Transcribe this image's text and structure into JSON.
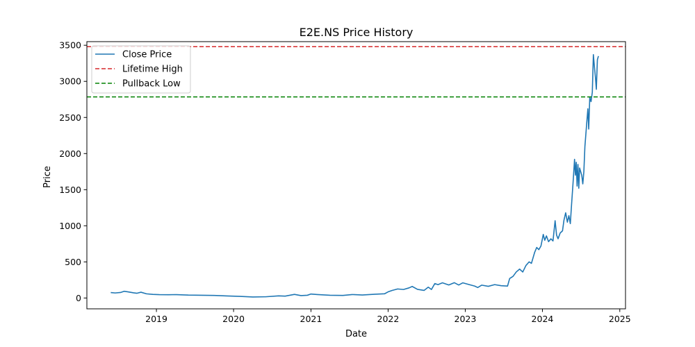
{
  "chart_data": {
    "type": "line",
    "title": "E2E.NS Price History",
    "xlabel": "Date",
    "ylabel": "Price",
    "xlim": [
      "2018-02-06",
      "2025-01-28"
    ],
    "ylim": [
      -150,
      3550
    ],
    "xticks": [
      "2019",
      "2020",
      "2021",
      "2022",
      "2023",
      "2024",
      "2025"
    ],
    "yticks": [
      0,
      500,
      1000,
      1500,
      2000,
      2500,
      3000,
      3500
    ],
    "grid": false,
    "legend": {
      "placement": "top-left",
      "entries": [
        "Close Price",
        "Lifetime High",
        "Pullback Low"
      ]
    },
    "colors": {
      "close": "#1f77b4",
      "lifetime_high": "#d62728",
      "pullback_low": "#008000"
    },
    "series": [
      {
        "name": "Close Price",
        "points": [
          [
            "2018-05-30",
            75
          ],
          [
            "2018-06-20",
            70
          ],
          [
            "2018-07-15",
            76
          ],
          [
            "2018-08-01",
            93
          ],
          [
            "2018-08-20",
            85
          ],
          [
            "2018-09-15",
            72
          ],
          [
            "2018-10-01",
            66
          ],
          [
            "2018-10-20",
            80
          ],
          [
            "2018-11-15",
            58
          ],
          [
            "2018-12-15",
            50
          ],
          [
            "2019-01-15",
            46
          ],
          [
            "2019-03-01",
            45
          ],
          [
            "2019-04-01",
            47
          ],
          [
            "2019-06-01",
            40
          ],
          [
            "2019-08-01",
            38
          ],
          [
            "2019-10-01",
            36
          ],
          [
            "2019-12-01",
            28
          ],
          [
            "2020-02-01",
            22
          ],
          [
            "2020-04-01",
            14
          ],
          [
            "2020-06-01",
            17
          ],
          [
            "2020-08-01",
            30
          ],
          [
            "2020-09-01",
            26
          ],
          [
            "2020-10-15",
            50
          ],
          [
            "2020-11-15",
            33
          ],
          [
            "2020-12-15",
            38
          ],
          [
            "2021-01-01",
            55
          ],
          [
            "2021-02-01",
            48
          ],
          [
            "2021-04-01",
            38
          ],
          [
            "2021-06-01",
            36
          ],
          [
            "2021-07-15",
            48
          ],
          [
            "2021-09-01",
            42
          ],
          [
            "2021-11-01",
            52
          ],
          [
            "2021-12-15",
            58
          ],
          [
            "2022-01-01",
            85
          ],
          [
            "2022-01-20",
            105
          ],
          [
            "2022-02-15",
            125
          ],
          [
            "2022-03-15",
            118
          ],
          [
            "2022-04-10",
            140
          ],
          [
            "2022-04-25",
            160
          ],
          [
            "2022-05-20",
            120
          ],
          [
            "2022-06-20",
            105
          ],
          [
            "2022-07-10",
            150
          ],
          [
            "2022-07-25",
            118
          ],
          [
            "2022-08-10",
            200
          ],
          [
            "2022-08-25",
            185
          ],
          [
            "2022-09-15",
            210
          ],
          [
            "2022-10-15",
            180
          ],
          [
            "2022-11-10",
            212
          ],
          [
            "2022-12-01",
            180
          ],
          [
            "2022-12-20",
            210
          ],
          [
            "2023-01-20",
            185
          ],
          [
            "2023-02-15",
            165
          ],
          [
            "2023-03-01",
            145
          ],
          [
            "2023-03-20",
            178
          ],
          [
            "2023-04-20",
            162
          ],
          [
            "2023-05-20",
            185
          ],
          [
            "2023-06-20",
            170
          ],
          [
            "2023-07-20",
            165
          ],
          [
            "2023-07-30",
            270
          ],
          [
            "2023-08-15",
            300
          ],
          [
            "2023-08-30",
            360
          ],
          [
            "2023-09-15",
            400
          ],
          [
            "2023-09-30",
            360
          ],
          [
            "2023-10-15",
            450
          ],
          [
            "2023-10-30",
            500
          ],
          [
            "2023-11-10",
            480
          ],
          [
            "2023-11-25",
            630
          ],
          [
            "2023-12-05",
            700
          ],
          [
            "2023-12-15",
            670
          ],
          [
            "2023-12-25",
            720
          ],
          [
            "2024-01-05",
            880
          ],
          [
            "2024-01-12",
            800
          ],
          [
            "2024-01-20",
            860
          ],
          [
            "2024-01-30",
            780
          ],
          [
            "2024-02-10",
            820
          ],
          [
            "2024-02-20",
            790
          ],
          [
            "2024-03-01",
            1070
          ],
          [
            "2024-03-08",
            870
          ],
          [
            "2024-03-15",
            820
          ],
          [
            "2024-03-25",
            900
          ],
          [
            "2024-04-05",
            930
          ],
          [
            "2024-04-12",
            1080
          ],
          [
            "2024-04-20",
            1180
          ],
          [
            "2024-04-28",
            1050
          ],
          [
            "2024-05-05",
            1140
          ],
          [
            "2024-05-12",
            1030
          ],
          [
            "2024-05-18",
            1300
          ],
          [
            "2024-05-25",
            1600
          ],
          [
            "2024-06-01",
            1920
          ],
          [
            "2024-06-05",
            1700
          ],
          [
            "2024-06-09",
            1880
          ],
          [
            "2024-06-13",
            1550
          ],
          [
            "2024-06-17",
            1850
          ],
          [
            "2024-06-21",
            1520
          ],
          [
            "2024-06-25",
            1800
          ],
          [
            "2024-06-30",
            1750
          ],
          [
            "2024-07-05",
            1700
          ],
          [
            "2024-07-10",
            1580
          ],
          [
            "2024-07-15",
            1750
          ],
          [
            "2024-07-20",
            2100
          ],
          [
            "2024-07-28",
            2400
          ],
          [
            "2024-08-03",
            2620
          ],
          [
            "2024-08-07",
            2340
          ],
          [
            "2024-08-12",
            2780
          ],
          [
            "2024-08-18",
            2720
          ],
          [
            "2024-08-24",
            2850
          ],
          [
            "2024-08-29",
            3370
          ],
          [
            "2024-09-03",
            3200
          ],
          [
            "2024-09-08",
            3050
          ],
          [
            "2024-09-12",
            2890
          ],
          [
            "2024-09-17",
            3300
          ],
          [
            "2024-09-22",
            3350
          ]
        ]
      },
      {
        "name": "Lifetime High",
        "style": "dashed",
        "y": 3480
      },
      {
        "name": "Pullback Low",
        "style": "dashed",
        "y": 2785
      }
    ]
  }
}
